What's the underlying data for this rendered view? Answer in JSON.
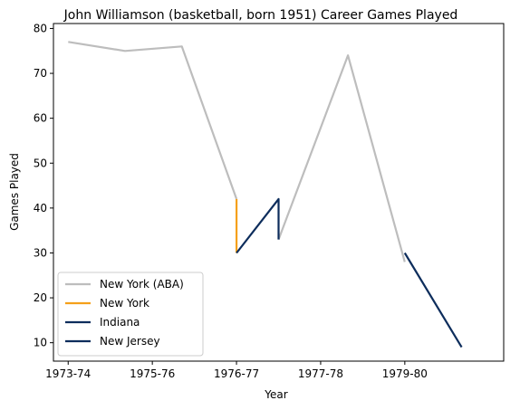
{
  "chart_data": {
    "type": "line",
    "title": "John Williamson (basketball, born 1951) Career Games Played",
    "xlabel": "Year",
    "ylabel": "Games Played",
    "x_ticks": [
      {
        "value": 0,
        "label": "1973-74"
      },
      {
        "value": 2,
        "label": "1975-76"
      },
      {
        "value": 4,
        "label": "1976-77"
      },
      {
        "value": 6,
        "label": "1977-78"
      },
      {
        "value": 8,
        "label": "1979-80"
      }
    ],
    "y_ticks": [
      10,
      20,
      30,
      40,
      50,
      60,
      70,
      80
    ],
    "xlim": [
      -0.35,
      10.35
    ],
    "ylim": [
      5.9,
      81.1
    ],
    "grid": false,
    "legend_position": "lower-left",
    "series": [
      {
        "name": "New York (ABA)",
        "color": "#bdbdbd",
        "points": [
          [
            0,
            77
          ],
          [
            1.35,
            75
          ],
          [
            2.7,
            76
          ],
          [
            4,
            42
          ]
        ]
      },
      {
        "name": "New York (ABA)",
        "color": "#bdbdbd",
        "in_legend": false,
        "points": [
          [
            5,
            33
          ],
          [
            6.65,
            74
          ],
          [
            8,
            28
          ]
        ]
      },
      {
        "name": "New York",
        "color": "#f5a01a",
        "points": [
          [
            4,
            42
          ],
          [
            4,
            30
          ]
        ]
      },
      {
        "name": "Indiana",
        "color": "#0d2d5c",
        "points": [
          [
            4,
            30
          ],
          [
            5,
            42
          ],
          [
            5,
            33
          ]
        ]
      },
      {
        "name": "New Jersey",
        "color": "#0d2d5c",
        "points": [
          [
            8,
            30
          ],
          [
            9.35,
            9
          ]
        ]
      }
    ]
  }
}
